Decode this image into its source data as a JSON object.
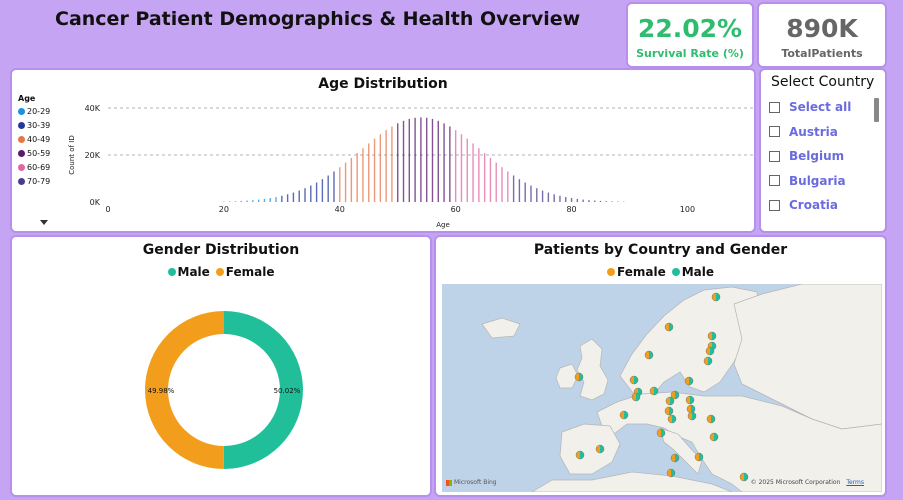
{
  "dashboard": {
    "title": "Cancer Patient Demographics & Health Overview"
  },
  "kpis": {
    "survival": {
      "value": "22.02%",
      "label": "Survival Rate (%)",
      "color": "#2ebd6e"
    },
    "total": {
      "value": "890K",
      "label": "TotalPatients",
      "color": "#666666"
    }
  },
  "age_chart": {
    "title": "Age Distribution",
    "legend_title": "Age",
    "legend": [
      {
        "label": "20-29",
        "color": "#1f8fe0"
      },
      {
        "label": "30-39",
        "color": "#233a99"
      },
      {
        "label": "40-49",
        "color": "#e5774a"
      },
      {
        "label": "50-59",
        "color": "#5a1a6e"
      },
      {
        "label": "60-69",
        "color": "#e066a6"
      },
      {
        "label": "70-79",
        "color": "#4b3b8c"
      }
    ],
    "scroll_icon": "chevron-down-icon"
  },
  "slicer": {
    "title": "Select Country",
    "items": [
      "Select all",
      "Austria",
      "Belgium",
      "Bulgaria",
      "Croatia"
    ]
  },
  "gender_chart": {
    "title": "Gender Distribution",
    "legend": [
      {
        "label": "Male",
        "color": "#20bf9a"
      },
      {
        "label": "Female",
        "color": "#f29e1c"
      }
    ],
    "female_label": "49.98%",
    "male_label": "50.02%"
  },
  "map_chart": {
    "title": "Patients by Country and Gender",
    "legend": [
      {
        "label": "Female",
        "color": "#f29e1c"
      },
      {
        "label": "Male",
        "color": "#20bf9a"
      }
    ],
    "attribution": "Microsoft Bing",
    "copyright": "© 2025 Microsoft Corporation",
    "terms": "Terms",
    "land_color": "#f1f0eb",
    "water_color": "#bfd3e8"
  },
  "chart_data": [
    {
      "type": "bar",
      "title": "Age Distribution",
      "xlabel": "Age",
      "ylabel": "Count of ID",
      "xlim": [
        0,
        107
      ],
      "ylim": [
        0,
        40000
      ],
      "x_ticks": [
        0,
        20,
        40,
        60,
        80,
        100
      ],
      "x_tick_labels": [
        "0",
        "20",
        "40",
        "60",
        "80",
        "100"
      ],
      "y_ticks": [
        0,
        20000,
        40000
      ],
      "y_tick_labels": [
        "0K",
        "20K",
        "40K"
      ],
      "grid": true,
      "legend_position": "left",
      "distribution": {
        "mean": 54,
        "sd": 10.5,
        "peak": 36000,
        "x_min": 20,
        "x_max": 89
      }
    },
    {
      "type": "pie",
      "title": "Gender Distribution",
      "labels": [
        "Female",
        "Male"
      ],
      "values": [
        49.98,
        50.02
      ],
      "colors": [
        "#f29e1c",
        "#20bf9a"
      ]
    }
  ]
}
